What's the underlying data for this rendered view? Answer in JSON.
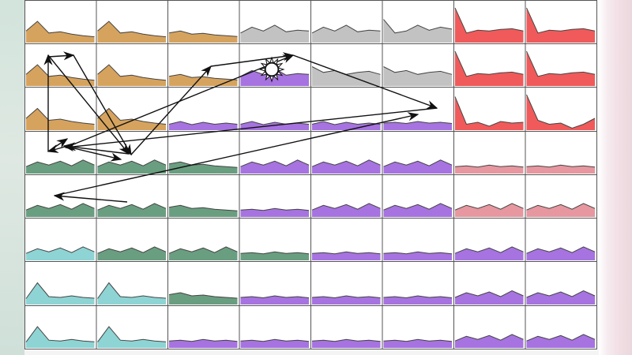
{
  "diagram": {
    "type": "small-multiples-grid",
    "rows": 8,
    "columns": 8,
    "color_legend": {
      "orange": "#d6a35e",
      "gray": "#c2c2c2",
      "red": "#f05a5a",
      "green": "#6a9e80",
      "purple": "#a673e0",
      "pink": "#e6979f",
      "teal": "#8ed4d4"
    },
    "cell_colors": [
      [
        "orange",
        "orange",
        "orange",
        "gray",
        "gray",
        "gray",
        "red",
        "red"
      ],
      [
        "orange",
        "orange",
        "orange",
        "purple",
        "gray",
        "gray",
        "red",
        "red"
      ],
      [
        "orange",
        "orange",
        "purple",
        "purple",
        "purple",
        "purple",
        "red",
        "red"
      ],
      [
        "green",
        "green",
        "green",
        "purple",
        "purple",
        "purple",
        "pink",
        "pink"
      ],
      [
        "green",
        "green",
        "green",
        "purple",
        "purple",
        "purple",
        "pink",
        "pink"
      ],
      [
        "teal",
        "green",
        "green",
        "green",
        "purple",
        "purple",
        "purple",
        "purple"
      ],
      [
        "teal",
        "teal",
        "green",
        "purple",
        "purple",
        "purple",
        "purple",
        "purple"
      ],
      [
        "teal",
        "teal",
        "purple",
        "purple",
        "purple",
        "purple",
        "purple",
        "purple"
      ]
    ],
    "cell_shapes": [
      [
        "peak",
        "peak",
        "hump",
        "bumpy",
        "bumpy",
        "spike_down",
        "red_drop",
        "red_drop"
      ],
      [
        "peak",
        "peak",
        "hump",
        "bumpy",
        "gray_mid",
        "gray_mid",
        "red_drop",
        "red_drop"
      ],
      [
        "peak",
        "peak",
        "low",
        "low",
        "low",
        "flat",
        "red_low",
        "red_low2"
      ],
      [
        "wave",
        "wave",
        "hump",
        "wave",
        "wave",
        "wave",
        "flat",
        "flat"
      ],
      [
        "wave",
        "wave",
        "hump",
        "flat",
        "wave",
        "wave",
        "wave",
        "wave"
      ],
      [
        "wave",
        "wave",
        "wave",
        "flat",
        "flat",
        "flat",
        "wave",
        "wave"
      ],
      [
        "spike",
        "spike",
        "hump",
        "flat",
        "flat",
        "flat",
        "wave",
        "wave"
      ],
      [
        "spike",
        "spike",
        "flat",
        "flat",
        "flat",
        "flat",
        "wave",
        "wave"
      ]
    ],
    "path_arrows": [
      {
        "from": [
          3,
          6
        ],
        "to": [
          3,
          1
        ]
      },
      {
        "from": [
          3,
          6
        ],
        "to": [
          1,
          8
        ]
      },
      {
        "from": [
          1,
          8
        ],
        "to": [
          3,
          2
        ]
      },
      {
        "from": [
          3,
          2
        ],
        "to": [
          1,
          10
        ]
      },
      {
        "from": [
          1,
          10
        ],
        "to": [
          2,
          9
        ]
      },
      {
        "from": [
          2,
          9
        ],
        "to": [
          1,
          5
        ]
      },
      {
        "from": [
          1,
          5
        ],
        "to": [
          2,
          8
        ]
      },
      {
        "from": [
          2,
          8
        ],
        "to": [
          0,
          5
        ]
      },
      {
        "from": [
          0,
          5
        ],
        "to": [
          2,
          4
        ]
      },
      {
        "from": [
          2,
          4
        ],
        "to": [
          0,
          5
        ]
      },
      {
        "from": [
          0,
          5
        ],
        "to": [
          1,
          11
        ]
      },
      {
        "from": [
          1,
          11
        ],
        "to": [
          2,
          6
        ]
      },
      {
        "from": [
          2,
          6
        ],
        "to": [
          0,
          10
        ]
      },
      {
        "from": [
          0,
          10
        ],
        "to": [
          0,
          6
        ]
      },
      {
        "from": [
          0,
          6
        ],
        "to": [
          0,
          10
        ]
      },
      {
        "from": [
          0,
          10
        ],
        "to": [
          0,
          2
        ]
      },
      {
        "from": [
          0,
          2
        ],
        "to": [
          0,
          10
        ]
      },
      {
        "from": [
          0,
          10
        ],
        "to": [
          2,
          10
        ]
      }
    ],
    "highlight_marker": "sun-icon"
  }
}
